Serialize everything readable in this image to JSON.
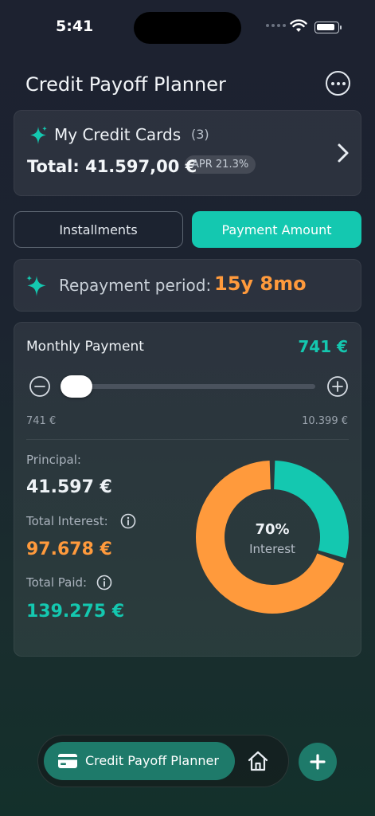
{
  "status_bar": {
    "time": "5:41"
  },
  "header": {
    "title": "Credit Payoff Planner"
  },
  "credit_cards": {
    "title": "My Credit Cards",
    "count": "(3)",
    "total": "Total: 41.597,00 €",
    "apr": "APR 21.3%"
  },
  "segments": {
    "installments": "Installments",
    "payment_amount": "Payment Amount",
    "selected": "Payment Amount"
  },
  "period": {
    "label": "Repayment period:",
    "value": "15y 8mo"
  },
  "payment": {
    "label": "Monthly Payment",
    "value": "741 €",
    "min": "741 €",
    "max": "10.399 €",
    "slider_fraction": 0.0
  },
  "summary": {
    "principal_label": "Principal:",
    "principal_value": "41.597 €",
    "interest_label": "Total Interest:",
    "interest_value": "97.678 €",
    "paid_label": "Total Paid:",
    "paid_value": "139.275 €"
  },
  "donut": {
    "percent": "70%",
    "caption": "Interest",
    "interest_fraction": 0.7,
    "colors": {
      "interest": "#ff9a3c",
      "principal": "#14c8b0"
    }
  },
  "tabbar": {
    "active_label": "Credit Payoff Planner"
  },
  "colors": {
    "accent": "#14c8b0",
    "orange": "#ff9a3c"
  }
}
